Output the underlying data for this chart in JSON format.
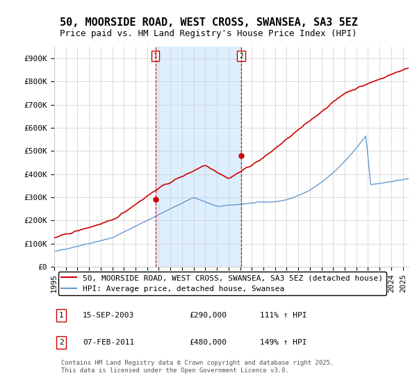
{
  "title": "50, MOORSIDE ROAD, WEST CROSS, SWANSEA, SA3 5EZ",
  "subtitle": "Price paid vs. HM Land Registry's House Price Index (HPI)",
  "ylabel_ticks": [
    "£0",
    "£100K",
    "£200K",
    "£300K",
    "£400K",
    "£500K",
    "£600K",
    "£700K",
    "£800K",
    "£900K"
  ],
  "ylim": [
    0,
    950000
  ],
  "xlim_start": 1995.0,
  "xlim_end": 2025.5,
  "transaction1_date": 2003.71,
  "transaction1_price": 290000,
  "transaction1_label": "1",
  "transaction1_text": "15-SEP-2003    £290,000    111% ↑ HPI",
  "transaction2_date": 2011.09,
  "transaction2_price": 480000,
  "transaction2_label": "2",
  "transaction2_text": "07-FEB-2011    £480,000    149% ↑ HPI",
  "shade_color": "#ddeeff",
  "vline_color": "#cc0000",
  "red_line_color": "#cc0000",
  "blue_line_color": "#6699cc",
  "legend_label_red": "50, MOORSIDE ROAD, WEST CROSS, SWANSEA, SA3 5EZ (detached house)",
  "legend_label_blue": "HPI: Average price, detached house, Swansea",
  "copyright_text": "Contains HM Land Registry data © Crown copyright and database right 2025.\nThis data is licensed under the Open Government Licence v3.0.",
  "background_color": "#ffffff",
  "grid_color": "#cccccc",
  "title_fontsize": 11,
  "subtitle_fontsize": 9,
  "tick_fontsize": 8,
  "legend_fontsize": 8,
  "annotation_fontsize": 8,
  "copyright_fontsize": 6.5
}
